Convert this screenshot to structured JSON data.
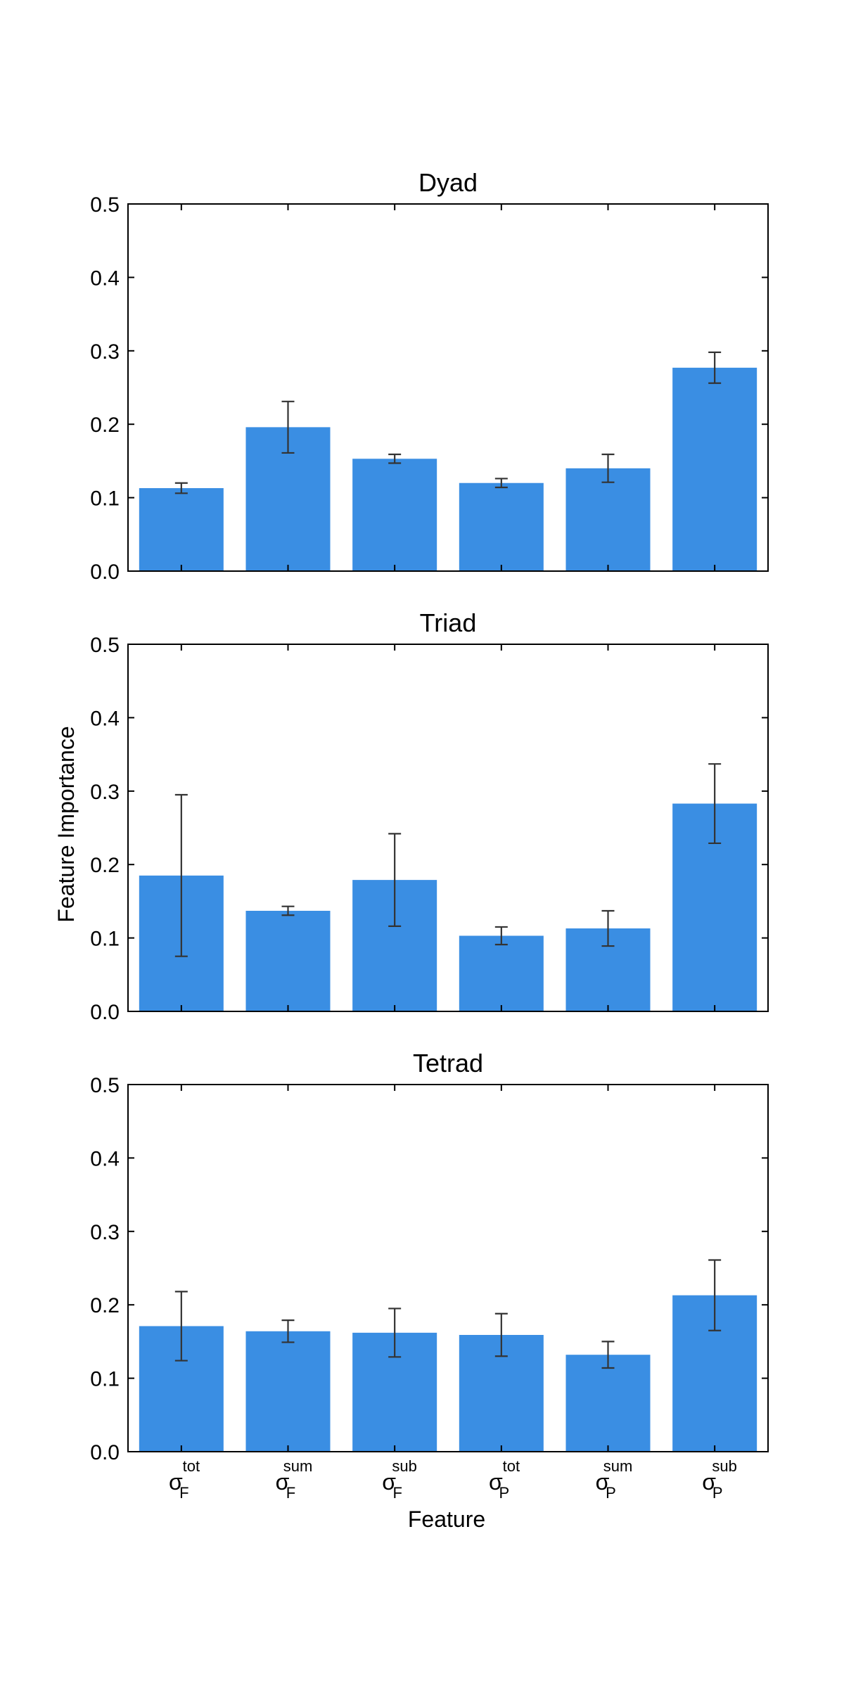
{
  "figure": {
    "ylabel": "Feature Importance",
    "xlabel": "Feature"
  },
  "chart_data": [
    {
      "type": "bar",
      "title": "Dyad",
      "xlabel": "",
      "ylabel": "Feature Importance",
      "ylim": [
        0,
        0.5
      ],
      "yticks": [
        "0.0",
        "0.1",
        "0.2",
        "0.3",
        "0.4",
        "0.5"
      ],
      "categories": [
        "σ_F^tot",
        "σ_F^sum",
        "σ_F^sub",
        "σ_P^tot",
        "σ_P^sum",
        "σ_P^sub"
      ],
      "values": [
        0.113,
        0.196,
        0.153,
        0.12,
        0.14,
        0.277
      ],
      "error": [
        0.007,
        0.035,
        0.006,
        0.006,
        0.019,
        0.021
      ],
      "grid": false,
      "color": "#3a8ee3"
    },
    {
      "type": "bar",
      "title": "Triad",
      "xlabel": "",
      "ylabel": "Feature Importance",
      "ylim": [
        0,
        0.5
      ],
      "yticks": [
        "0.0",
        "0.1",
        "0.2",
        "0.3",
        "0.4",
        "0.5"
      ],
      "categories": [
        "σ_F^tot",
        "σ_F^sum",
        "σ_F^sub",
        "σ_P^tot",
        "σ_P^sum",
        "σ_P^sub"
      ],
      "values": [
        0.185,
        0.137,
        0.179,
        0.103,
        0.113,
        0.283
      ],
      "error": [
        0.11,
        0.006,
        0.063,
        0.012,
        0.024,
        0.054
      ],
      "grid": false,
      "color": "#3a8ee3"
    },
    {
      "type": "bar",
      "title": "Tetrad",
      "xlabel": "Feature",
      "ylabel": "Feature Importance",
      "ylim": [
        0,
        0.5
      ],
      "yticks": [
        "0.0",
        "0.1",
        "0.2",
        "0.3",
        "0.4",
        "0.5"
      ],
      "categories": [
        "σ_F^tot",
        "σ_F^sum",
        "σ_F^sub",
        "σ_P^tot",
        "σ_P^sum",
        "σ_P^sub"
      ],
      "values": [
        0.171,
        0.164,
        0.162,
        0.159,
        0.132,
        0.213
      ],
      "error": [
        0.047,
        0.015,
        0.033,
        0.029,
        0.018,
        0.048
      ],
      "grid": false,
      "color": "#3a8ee3"
    }
  ],
  "x_tick_labels": [
    {
      "base": "σ",
      "sub": "F",
      "sup": "tot"
    },
    {
      "base": "σ",
      "sub": "F",
      "sup": "sum"
    },
    {
      "base": "σ",
      "sub": "F",
      "sup": "sub"
    },
    {
      "base": "σ",
      "sub": "P",
      "sup": "tot"
    },
    {
      "base": "σ",
      "sub": "P",
      "sup": "sum"
    },
    {
      "base": "σ",
      "sub": "P",
      "sup": "sub"
    }
  ],
  "colors": {
    "bar": "#3a8ee3",
    "errorbar": "#333333",
    "axis": "#000000"
  }
}
